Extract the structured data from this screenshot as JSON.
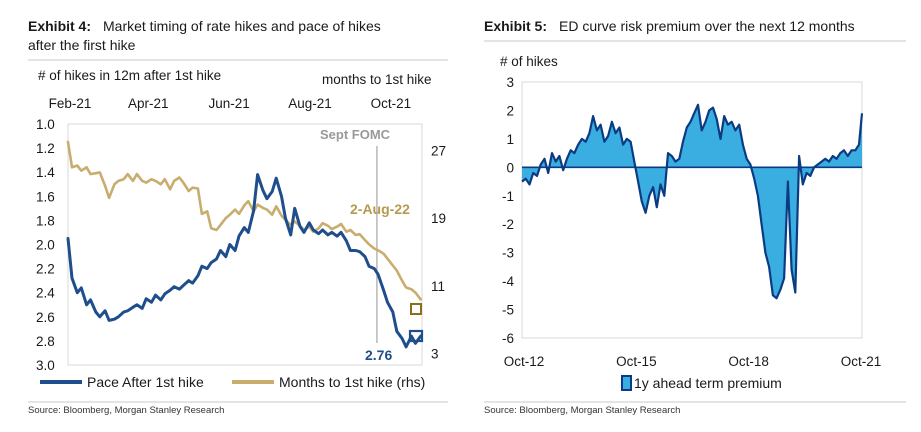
{
  "exhibit4": {
    "label": "Exhibit 4:",
    "title_line1": "Market timing of rate hikes and pace of hikes",
    "title_line2": "after the first hike",
    "left_axis_title": "# of hikes in 12m after 1st hike",
    "right_axis_title": "months to 1st hike",
    "event_label": "Sept FOMC",
    "end_label_right": "2-Aug-22",
    "end_label_left": "2.76",
    "source": "Source: Bloomberg, Morgan Stanley Research"
  },
  "exhibit5": {
    "label": "Exhibit 5:",
    "title": "ED curve risk premium over the next 12 months",
    "y_axis_title": "# of hikes",
    "source": "Source: Bloomberg, Morgan Stanley Research"
  },
  "colors": {
    "navy": "#1f4e8c",
    "gold": "#c8ad6e",
    "light_blue": "#3aaee0",
    "dark_blue": "#0b3b82",
    "event_line": "#a6a6a6",
    "label_gray": "#999999",
    "label_gold": "#b59a52",
    "label_navy": "#1f4e8c"
  },
  "chart_data": [
    {
      "id": "exhibit4",
      "type": "line",
      "xlabel": "",
      "ylabel": "# of hikes in 12m after 1st hike",
      "y2label": "months to 1st hike",
      "x_tick_labels": [
        "Feb-21",
        "Apr-21",
        "Jun-21",
        "Aug-21",
        "Oct-21"
      ],
      "y_ticks": [
        "1.0",
        "1.2",
        "1.4",
        "1.6",
        "1.8",
        "2.0",
        "2.2",
        "2.4",
        "2.6",
        "2.8",
        "3.0"
      ],
      "y2_ticks": [
        "27",
        "19",
        "11",
        "3"
      ],
      "ylim": [
        3.0,
        1.0
      ],
      "y2lim": [
        1,
        30
      ],
      "y_inverted": true,
      "grid": false,
      "legend_position": "bottom",
      "series": [
        {
          "name": "Pace After 1st hike",
          "axis": "left",
          "points": [
            [
              "2021-02-01",
              1.95
            ],
            [
              "2021-02-04",
              2.28
            ],
            [
              "2021-02-08",
              2.4
            ],
            [
              "2021-02-11",
              2.36
            ],
            [
              "2021-02-15",
              2.5
            ],
            [
              "2021-02-18",
              2.46
            ],
            [
              "2021-02-22",
              2.56
            ],
            [
              "2021-02-25",
              2.6
            ],
            [
              "2021-03-01",
              2.55
            ],
            [
              "2021-03-04",
              2.63
            ],
            [
              "2021-03-08",
              2.62
            ],
            [
              "2021-03-11",
              2.6
            ],
            [
              "2021-03-15",
              2.56
            ],
            [
              "2021-03-18",
              2.55
            ],
            [
              "2021-03-22",
              2.52
            ],
            [
              "2021-03-25",
              2.5
            ],
            [
              "2021-03-29",
              2.53
            ],
            [
              "2021-04-01",
              2.45
            ],
            [
              "2021-04-05",
              2.48
            ],
            [
              "2021-04-08",
              2.42
            ],
            [
              "2021-04-12",
              2.46
            ],
            [
              "2021-04-15",
              2.41
            ],
            [
              "2021-04-19",
              2.38
            ],
            [
              "2021-04-22",
              2.35
            ],
            [
              "2021-04-26",
              2.37
            ],
            [
              "2021-04-29",
              2.34
            ],
            [
              "2021-05-03",
              2.3
            ],
            [
              "2021-05-06",
              2.32
            ],
            [
              "2021-05-10",
              2.26
            ],
            [
              "2021-05-13",
              2.18
            ],
            [
              "2021-05-17",
              2.2
            ],
            [
              "2021-05-20",
              2.15
            ],
            [
              "2021-05-24",
              2.12
            ],
            [
              "2021-05-27",
              2.05
            ],
            [
              "2021-05-31",
              2.1
            ],
            [
              "2021-06-03",
              2.0
            ],
            [
              "2021-06-07",
              2.05
            ],
            [
              "2021-06-10",
              1.93
            ],
            [
              "2021-06-14",
              1.86
            ],
            [
              "2021-06-17",
              1.9
            ],
            [
              "2021-06-21",
              1.72
            ],
            [
              "2021-06-24",
              1.42
            ],
            [
              "2021-06-28",
              1.55
            ],
            [
              "2021-07-01",
              1.62
            ],
            [
              "2021-07-05",
              1.56
            ],
            [
              "2021-07-08",
              1.45
            ],
            [
              "2021-07-12",
              1.6
            ],
            [
              "2021-07-15",
              1.78
            ],
            [
              "2021-07-19",
              1.92
            ],
            [
              "2021-07-22",
              1.7
            ],
            [
              "2021-07-26",
              1.85
            ],
            [
              "2021-07-29",
              1.9
            ],
            [
              "2021-08-02",
              1.82
            ],
            [
              "2021-08-05",
              1.88
            ],
            [
              "2021-08-09",
              1.91
            ],
            [
              "2021-08-12",
              1.88
            ],
            [
              "2021-08-16",
              1.92
            ],
            [
              "2021-08-19",
              1.9
            ],
            [
              "2021-08-23",
              1.93
            ],
            [
              "2021-08-26",
              1.9
            ],
            [
              "2021-08-30",
              1.97
            ],
            [
              "2021-09-02",
              2.05
            ],
            [
              "2021-09-06",
              2.05
            ],
            [
              "2021-09-09",
              2.06
            ],
            [
              "2021-09-13",
              2.1
            ],
            [
              "2021-09-16",
              2.18
            ],
            [
              "2021-09-20",
              2.2
            ],
            [
              "2021-09-23",
              2.25
            ],
            [
              "2021-09-27",
              2.38
            ],
            [
              "2021-09-30",
              2.48
            ],
            [
              "2021-10-04",
              2.56
            ],
            [
              "2021-10-07",
              2.72
            ],
            [
              "2021-10-11",
              2.78
            ],
            [
              "2021-10-14",
              2.85
            ],
            [
              "2021-10-18",
              2.76
            ],
            [
              "2021-10-21",
              2.82
            ],
            [
              "2021-10-25",
              2.76
            ]
          ]
        },
        {
          "name": "Months to 1st hike (rhs)",
          "axis": "right",
          "points": [
            [
              "2021-02-01",
              28.0
            ],
            [
              "2021-02-04",
              25.0
            ],
            [
              "2021-02-08",
              25.2
            ],
            [
              "2021-02-11",
              24.6
            ],
            [
              "2021-02-15",
              25.0
            ],
            [
              "2021-02-18",
              24.2
            ],
            [
              "2021-02-22",
              24.3
            ],
            [
              "2021-02-25",
              24.4
            ],
            [
              "2021-03-01",
              22.8
            ],
            [
              "2021-03-04",
              21.4
            ],
            [
              "2021-03-08",
              23.0
            ],
            [
              "2021-03-11",
              23.4
            ],
            [
              "2021-03-15",
              23.6
            ],
            [
              "2021-03-18",
              24.2
            ],
            [
              "2021-03-22",
              23.4
            ],
            [
              "2021-03-25",
              24.2
            ],
            [
              "2021-03-29",
              23.4
            ],
            [
              "2021-04-01",
              23.2
            ],
            [
              "2021-04-05",
              23.6
            ],
            [
              "2021-04-08",
              23.4
            ],
            [
              "2021-04-12",
              23.0
            ],
            [
              "2021-04-15",
              23.6
            ],
            [
              "2021-04-19",
              22.4
            ],
            [
              "2021-04-22",
              23.4
            ],
            [
              "2021-04-26",
              23.8
            ],
            [
              "2021-04-29",
              23.2
            ],
            [
              "2021-05-03",
              22.2
            ],
            [
              "2021-05-06",
              22.6
            ],
            [
              "2021-05-10",
              22.5
            ],
            [
              "2021-05-13",
              19.5
            ],
            [
              "2021-05-17",
              19.8
            ],
            [
              "2021-05-20",
              17.8
            ],
            [
              "2021-05-24",
              17.6
            ],
            [
              "2021-05-27",
              18.2
            ],
            [
              "2021-05-31",
              19.0
            ],
            [
              "2021-06-03",
              19.4
            ],
            [
              "2021-06-07",
              20.0
            ],
            [
              "2021-06-10",
              19.5
            ],
            [
              "2021-06-14",
              20.5
            ],
            [
              "2021-06-17",
              21.0
            ],
            [
              "2021-06-21",
              19.8
            ],
            [
              "2021-06-24",
              20.6
            ],
            [
              "2021-06-28",
              20.2
            ],
            [
              "2021-07-01",
              20.0
            ],
            [
              "2021-07-05",
              19.4
            ],
            [
              "2021-07-08",
              20.4
            ],
            [
              "2021-07-12",
              19.3
            ],
            [
              "2021-07-15",
              18.8
            ],
            [
              "2021-07-19",
              18.2
            ],
            [
              "2021-07-22",
              18.6
            ],
            [
              "2021-07-26",
              18.1
            ],
            [
              "2021-07-29",
              17.6
            ],
            [
              "2021-08-02",
              18.0
            ],
            [
              "2021-08-05",
              17.4
            ],
            [
              "2021-08-09",
              17.8
            ],
            [
              "2021-08-12",
              18.4
            ],
            [
              "2021-08-16",
              18.1
            ],
            [
              "2021-08-19",
              17.7
            ],
            [
              "2021-08-23",
              18.0
            ],
            [
              "2021-08-26",
              18.3
            ],
            [
              "2021-08-30",
              17.4
            ],
            [
              "2021-09-02",
              17.6
            ],
            [
              "2021-09-06",
              17.0
            ],
            [
              "2021-09-09",
              17.1
            ],
            [
              "2021-09-13",
              16.4
            ],
            [
              "2021-09-16",
              15.9
            ],
            [
              "2021-09-20",
              15.4
            ],
            [
              "2021-09-23",
              15.2
            ],
            [
              "2021-09-27",
              14.8
            ],
            [
              "2021-09-30",
              14.2
            ],
            [
              "2021-10-04",
              13.4
            ],
            [
              "2021-10-07",
              12.8
            ],
            [
              "2021-10-11",
              11.6
            ],
            [
              "2021-10-14",
              10.8
            ],
            [
              "2021-10-18",
              10.6
            ],
            [
              "2021-10-21",
              10.2
            ],
            [
              "2021-10-25",
              9.4
            ]
          ]
        }
      ],
      "annotations": [
        {
          "type": "vline",
          "x": "2021-09-22",
          "label": "Sept FOMC"
        }
      ]
    },
    {
      "id": "exhibit5",
      "type": "area",
      "xlabel": "",
      "ylabel": "# of hikes",
      "x_tick_labels": [
        "Oct-12",
        "Oct-15",
        "Oct-18",
        "Oct-21"
      ],
      "y_ticks": [
        "3",
        "2",
        "1",
        "0",
        "-1",
        "-2",
        "-3",
        "-4",
        "-5",
        "-6"
      ],
      "ylim": [
        -6,
        3
      ],
      "xlim": [
        2012.75,
        2021.83
      ],
      "grid": false,
      "legend_position": "bottom",
      "series": [
        {
          "name": "1y ahead term premium",
          "x": [
            2012.75,
            2012.85,
            2012.95,
            2013.05,
            2013.15,
            2013.25,
            2013.35,
            2013.45,
            2013.55,
            2013.65,
            2013.75,
            2013.85,
            2013.95,
            2014.05,
            2014.15,
            2014.25,
            2014.35,
            2014.45,
            2014.55,
            2014.65,
            2014.75,
            2014.85,
            2014.95,
            2015.05,
            2015.15,
            2015.25,
            2015.35,
            2015.45,
            2015.55,
            2015.65,
            2015.75,
            2015.85,
            2015.95,
            2016.05,
            2016.15,
            2016.25,
            2016.35,
            2016.45,
            2016.55,
            2016.65,
            2016.75,
            2016.85,
            2016.95,
            2017.05,
            2017.15,
            2017.25,
            2017.35,
            2017.45,
            2017.55,
            2017.65,
            2017.75,
            2017.85,
            2017.95,
            2018.05,
            2018.15,
            2018.25,
            2018.35,
            2018.45,
            2018.55,
            2018.65,
            2018.75,
            2018.85,
            2018.95,
            2019.05,
            2019.15,
            2019.25,
            2019.35,
            2019.45,
            2019.55,
            2019.65,
            2019.75,
            2019.85,
            2019.95,
            2020.05,
            2020.15,
            2020.25,
            2020.35,
            2020.45,
            2020.55,
            2020.65,
            2020.75,
            2020.85,
            2020.95,
            2021.05,
            2021.15,
            2021.25,
            2021.35,
            2021.45,
            2021.55,
            2021.65,
            2021.75,
            2021.83
          ],
          "values": [
            -0.5,
            -0.4,
            -0.6,
            -0.2,
            -0.3,
            0.1,
            0.3,
            -0.2,
            0.5,
            0.2,
            0.4,
            -0.1,
            0.3,
            0.6,
            0.5,
            0.8,
            1.0,
            0.9,
            1.2,
            1.8,
            1.3,
            1.5,
            0.9,
            1.1,
            1.6,
            1.2,
            1.4,
            0.8,
            1.0,
            0.9,
            0.2,
            -0.5,
            -1.2,
            -1.6,
            -1.0,
            -0.7,
            -1.4,
            -0.6,
            -1.0,
            0.5,
            0.4,
            0.2,
            0.3,
            0.9,
            1.4,
            1.6,
            1.9,
            2.2,
            1.3,
            1.6,
            2.0,
            2.1,
            1.7,
            1.0,
            1.8,
            1.5,
            1.6,
            1.3,
            1.5,
            0.8,
            0.3,
            0.1,
            -0.4,
            -1.0,
            -2.0,
            -3.0,
            -3.5,
            -4.5,
            -4.6,
            -4.3,
            -3.9,
            -0.5,
            -3.6,
            -4.4,
            0.4,
            -0.6,
            -0.2,
            -0.3,
            0.0,
            0.1,
            0.2,
            0.3,
            0.2,
            0.4,
            0.3,
            0.5,
            0.6,
            0.4,
            0.6,
            0.6,
            0.8,
            1.9
          ]
        }
      ]
    }
  ]
}
